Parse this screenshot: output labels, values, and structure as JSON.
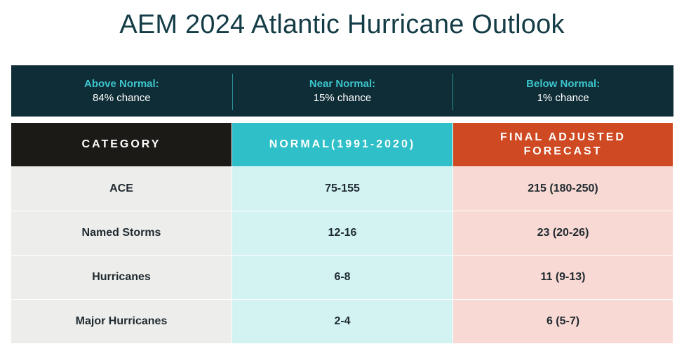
{
  "title": "AEM 2024 Atlantic Hurricane Outlook",
  "probabilities": [
    {
      "label": "Above Normal:",
      "value": "84% chance"
    },
    {
      "label": "Near Normal:",
      "value": "15% chance"
    },
    {
      "label": "Below Normal:",
      "value": "1% chance"
    }
  ],
  "table": {
    "headers": [
      "CATEGORY",
      "NORMAL(1991-2020)",
      "FINAL ADJUSTED\nFORECAST"
    ],
    "header_lines": {
      "col3_line1": "FINAL ADJUSTED",
      "col3_line2": "FORECAST"
    },
    "rows": [
      {
        "category": "ACE",
        "normal": "75-155",
        "forecast": "215 (180-250)"
      },
      {
        "category": "Named Storms",
        "normal": "12-16",
        "forecast": "23 (20-26)"
      },
      {
        "category": "Hurricanes",
        "normal": "6-8",
        "forecast": "11 (9-13)"
      },
      {
        "category": "Major Hurricanes",
        "normal": "2-4",
        "forecast": "6 (5-7)"
      }
    ]
  },
  "colors": {
    "title": "#143c46",
    "banner_bg": "#0f2d36",
    "banner_label": "#3cc4cc",
    "category_header": "#1c1a17",
    "normal_header": "#2fbfc8",
    "forecast_header": "#cf4a22",
    "category_cells": "#ededeb",
    "normal_cells": "#d3f3f3",
    "forecast_cells": "#f9d9d3"
  }
}
